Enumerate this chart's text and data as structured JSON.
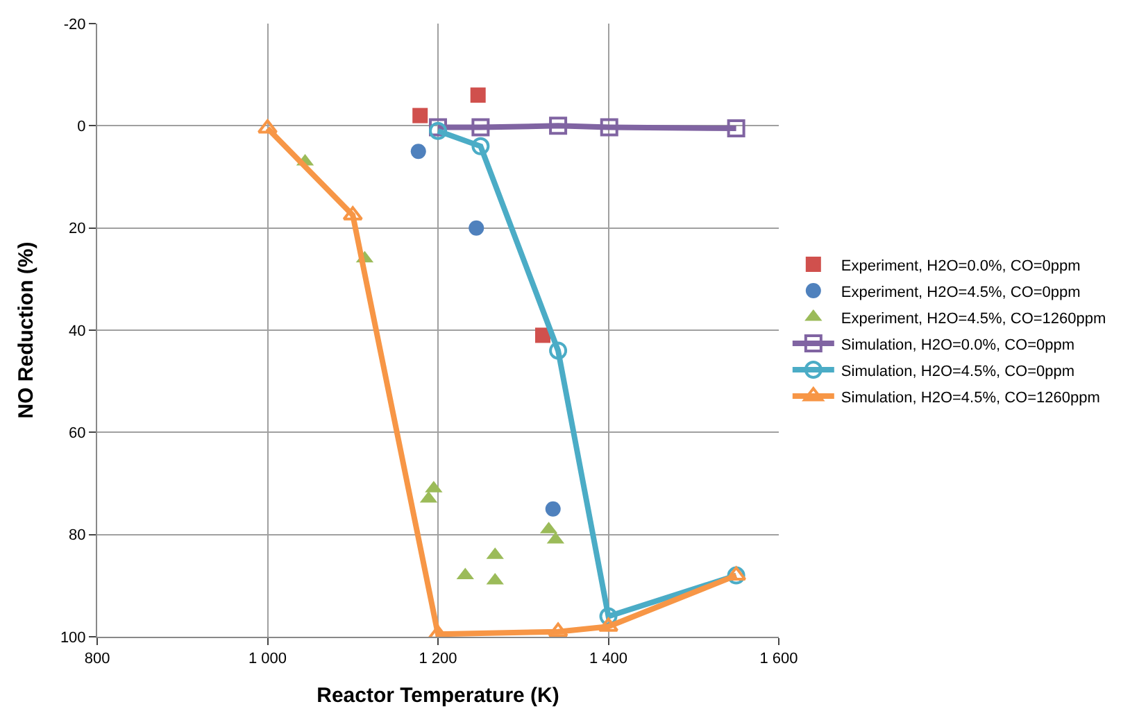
{
  "chart_data": {
    "type": "scatter",
    "xlabel": "Reactor Temperature (K)",
    "ylabel": "NO Reduction (%)",
    "xlim": [
      800,
      1600
    ],
    "xticks": [
      800,
      {
        "value": 1000,
        "label": "1 000"
      },
      {
        "value": 1200,
        "label": "1 200"
      },
      {
        "value": 1400,
        "label": "1 400"
      },
      {
        "value": 1600,
        "label": "1 600"
      }
    ],
    "ylim": [
      100,
      -20
    ],
    "yticks": [
      -20,
      0,
      20,
      40,
      60,
      80,
      100
    ],
    "grid": true,
    "legend": "right",
    "series": [
      {
        "name": "Experiment, H2O=0.0%, CO=0ppm",
        "marker": "square",
        "color": "#d0504d",
        "x": [
          1179,
          1247,
          1323
        ],
        "values": [
          -2,
          -6,
          41
        ]
      },
      {
        "name": "Experiment, H2O=4.5%, CO=0ppm",
        "marker": "circle",
        "color": "#4f81bd",
        "x": [
          1177,
          1245,
          1335
        ],
        "values": [
          5,
          20,
          75
        ]
      },
      {
        "name": "Experiment, H2O=4.5%, CO=1260ppm",
        "marker": "triangle",
        "color": "#9bbb59",
        "x": [
          1044,
          1114,
          1195,
          1189,
          1232,
          1267,
          1267,
          1330,
          1338
        ],
        "values": [
          7,
          26,
          71,
          73,
          88,
          84,
          89,
          79,
          81
        ]
      },
      {
        "name": "Simulation, H2O=0.0%, CO=0ppm",
        "type": "line",
        "marker": "square",
        "color": "#8064a2",
        "x": [
          1200,
          1250,
          1341,
          1401,
          1550
        ],
        "values": [
          0.3,
          0.3,
          0,
          0.3,
          0.5
        ]
      },
      {
        "name": "Simulation, H2O=4.5%, CO=0ppm",
        "type": "line",
        "marker": "circle",
        "color": "#4bacc6",
        "x": [
          1200,
          1250,
          1341,
          1400,
          1550
        ],
        "values": [
          1,
          4,
          44,
          96,
          88
        ]
      },
      {
        "name": "Simulation, H2O=4.5%, CO=1260ppm",
        "type": "line",
        "marker": "triangle",
        "color": "#f79646",
        "x": [
          1000,
          1100,
          1200,
          1341,
          1400,
          1550
        ],
        "values": [
          0.5,
          17.5,
          99.5,
          99,
          98,
          88
        ]
      }
    ]
  }
}
